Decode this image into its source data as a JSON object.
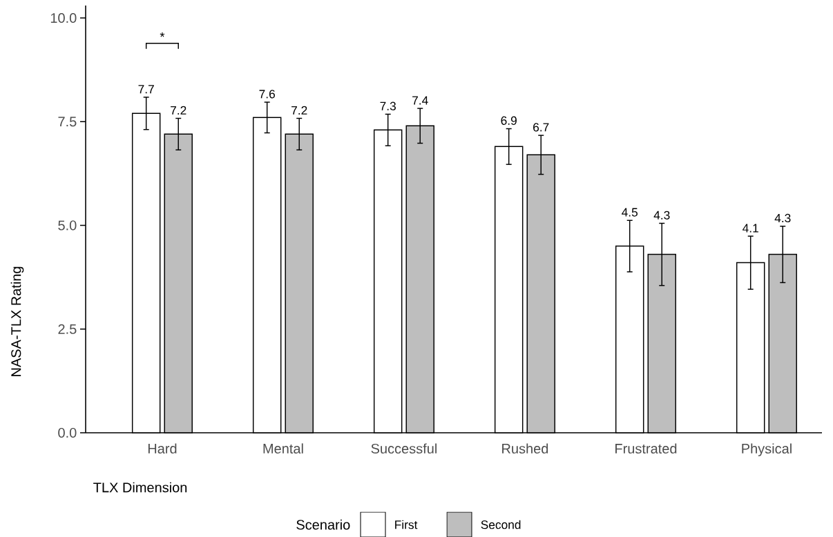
{
  "chart_data": {
    "type": "bar",
    "xlabel": "TLX Dimension",
    "ylabel": "NASA-TLX Rating",
    "legend_title": "Scenario",
    "legend": "bottom",
    "data_labels": true,
    "grid": false,
    "categories": [
      "Hard",
      "Mental",
      "Successful",
      "Rushed",
      "Frustrated",
      "Physical"
    ],
    "series": [
      {
        "name": "First",
        "color": "#ffffff",
        "values": [
          7.7,
          7.6,
          7.3,
          6.9,
          4.5,
          4.1
        ],
        "errors": [
          0.39,
          0.37,
          0.38,
          0.43,
          0.62,
          0.64
        ]
      },
      {
        "name": "Second",
        "color": "#bebebe",
        "values": [
          7.2,
          7.2,
          7.4,
          6.7,
          4.3,
          4.3
        ],
        "errors": [
          0.38,
          0.38,
          0.42,
          0.47,
          0.75,
          0.68
        ]
      }
    ],
    "ylim": [
      0,
      10.3
    ],
    "yticks": [
      {
        "value": 0,
        "label": "0.0"
      },
      2.5,
      {
        "value": 5,
        "label": "5.0"
      },
      7.5,
      {
        "value": 10,
        "label": "10.0"
      }
    ],
    "annotations": [
      "*"
    ]
  }
}
